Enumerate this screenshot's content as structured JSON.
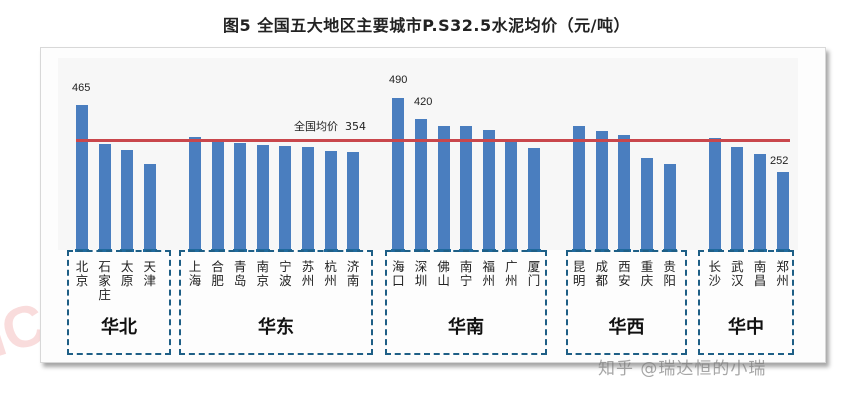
{
  "title": "图5  全国五大地区主要城市P.S32.5水泥均价（元/吨）",
  "watermarks": {
    "left": "ICC",
    "right": "知乎 @瑞达恒的小瑞"
  },
  "colors": {
    "bar": "#4a7ebf",
    "avg_line": "#c9474c",
    "region_border": "#1e5f86"
  },
  "chart_data": {
    "type": "bar",
    "title": "图5  全国五大地区主要城市P.S32.5水泥均价（元/吨）",
    "xlabel": "",
    "ylabel": "元/吨",
    "grid": false,
    "ylim": [
      0,
      620
    ],
    "reference_line": {
      "label": "全国均价",
      "value": 354
    },
    "data_labels_shown": {
      "北京": 465,
      "海口": 490,
      "深圳": 420,
      "郑州": 252
    },
    "groups": [
      {
        "region": "华北",
        "cities": [
          "北京",
          "石家庄",
          "太原",
          "天津"
        ],
        "values": [
          465,
          341,
          322,
          277
        ]
      },
      {
        "region": "华东",
        "cities": [
          "上海",
          "合肥",
          "青岛",
          "南京",
          "宁波",
          "苏州",
          "杭州",
          "济南"
        ],
        "values": [
          363,
          350,
          344,
          338,
          334,
          331,
          318,
          315
        ]
      },
      {
        "region": "华南",
        "cities": [
          "海口",
          "深圳",
          "佛山",
          "南宁",
          "福州",
          "广州",
          "厦门"
        ],
        "values": [
          490,
          420,
          399,
          399,
          386,
          357,
          328
        ]
      },
      {
        "region": "华西",
        "cities": [
          "昆明",
          "成都",
          "西安",
          "重庆",
          "贵阳"
        ],
        "values": [
          399,
          383,
          370,
          296,
          277
        ]
      },
      {
        "region": "华中",
        "cities": [
          "长沙",
          "武汉",
          "南昌",
          "郑州"
        ],
        "values": [
          360,
          331,
          309,
          252
        ]
      }
    ],
    "categories": [
      "北京",
      "石家庄",
      "太原",
      "天津",
      "上海",
      "合肥",
      "青岛",
      "南京",
      "宁波",
      "苏州",
      "杭州",
      "济南",
      "海口",
      "深圳",
      "佛山",
      "南宁",
      "福州",
      "广州",
      "厦门",
      "昆明",
      "成都",
      "西安",
      "重庆",
      "贵阳",
      "长沙",
      "武汉",
      "南昌",
      "郑州"
    ],
    "values": [
      465,
      341,
      322,
      277,
      363,
      350,
      344,
      338,
      334,
      331,
      318,
      315,
      490,
      420,
      399,
      399,
      386,
      357,
      328,
      399,
      383,
      370,
      296,
      277,
      360,
      331,
      309,
      252
    ]
  },
  "avg_label": "全国均价",
  "avg_value": "354",
  "labels": {
    "v0": "465",
    "v12": "490",
    "v13": "420",
    "v27": "252"
  },
  "regions": [
    {
      "name": "华北",
      "cities": [
        "北京",
        "石家庄",
        "太原",
        "天津"
      ]
    },
    {
      "name": "华东",
      "cities": [
        "上海",
        "合肥",
        "青岛",
        "南京",
        "宁波",
        "苏州",
        "杭州",
        "济南"
      ]
    },
    {
      "name": "华南",
      "cities": [
        "海口",
        "深圳",
        "佛山",
        "南宁",
        "福州",
        "广州",
        "厦门"
      ]
    },
    {
      "name": "华西",
      "cities": [
        "昆明",
        "成都",
        "西安",
        "重庆",
        "贵阳"
      ]
    },
    {
      "name": "华中",
      "cities": [
        "长沙",
        "武汉",
        "南昌",
        "郑州"
      ]
    }
  ]
}
